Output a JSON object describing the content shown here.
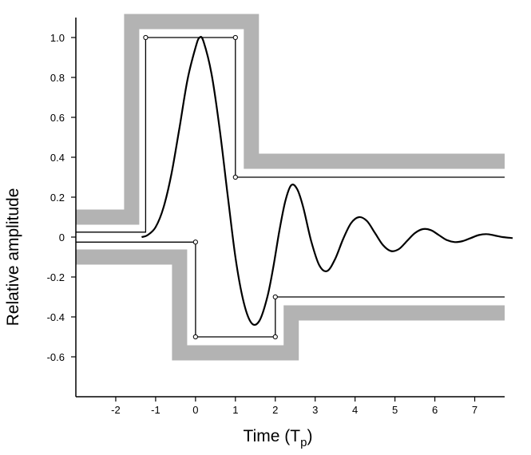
{
  "chart_data": {
    "type": "line",
    "xlabel": "Time (T",
    "xlabel_sub": "p",
    "xlabel_close": ")",
    "ylabel": "Relative amplitude",
    "xlim": [
      -3,
      7.75
    ],
    "ylim": [
      -0.8,
      1.1
    ],
    "x_ticks": [
      -2,
      -1,
      0,
      1,
      2,
      3,
      4,
      5,
      6,
      7
    ],
    "x_tick_labels": [
      "-2",
      "-1",
      "0",
      "1",
      "2",
      "3",
      "4",
      "5",
      "6",
      "7"
    ],
    "y_ticks": [
      1.0,
      0.8,
      0.6,
      0.4,
      0.2,
      0,
      -0.2,
      -0.4,
      -0.6
    ],
    "y_tick_labels": [
      "1.0",
      "0.8",
      "0.6",
      "0.4",
      "0.2",
      "0",
      "-0.2",
      "-0.4",
      "-0.6"
    ],
    "colors": {
      "band": "#b3b3b3",
      "line": "#000000"
    },
    "upper_envelope": {
      "x": [
        -3,
        -1.25,
        -1.25,
        1.0,
        1.0,
        7.75
      ],
      "y": [
        0.025,
        0.025,
        1.0,
        1.0,
        0.3,
        0.3
      ],
      "markers_x": [
        -1.25,
        1.0,
        1.0
      ],
      "markers_y": [
        1.0,
        1.0,
        0.3
      ]
    },
    "lower_envelope": {
      "x": [
        -3,
        0.0,
        0.0,
        2.0,
        2.0,
        7.75
      ],
      "y": [
        -0.025,
        -0.025,
        -0.5,
        -0.5,
        -0.3,
        -0.3
      ],
      "markers_x": [
        0.0,
        0.0,
        2.0,
        2.0
      ],
      "markers_y": [
        -0.025,
        -0.5,
        -0.5,
        -0.3
      ]
    },
    "upper_band": {
      "x": [
        -3,
        -1.6,
        -1.6,
        1.4,
        1.4,
        7.75
      ],
      "y": [
        0.1,
        0.1,
        1.08,
        1.08,
        0.38,
        0.38
      ]
    },
    "lower_band": {
      "x": [
        -3,
        -0.4,
        -0.4,
        2.4,
        2.4,
        7.75
      ],
      "y": [
        -0.1,
        -0.1,
        -0.58,
        -0.58,
        -0.38,
        -0.38
      ]
    },
    "waveform": {
      "x": [
        -1.35,
        -1.2,
        -1.0,
        -0.8,
        -0.6,
        -0.4,
        -0.2,
        0.0,
        0.1,
        0.2,
        0.4,
        0.6,
        0.8,
        1.0,
        1.2,
        1.4,
        1.6,
        1.8,
        1.95,
        2.1,
        2.25,
        2.4,
        2.55,
        2.7,
        2.9,
        3.1,
        3.3,
        3.5,
        3.7,
        3.9,
        4.1,
        4.3,
        4.5,
        4.7,
        4.9,
        5.1,
        5.3,
        5.5,
        5.7,
        5.9,
        6.1,
        6.3,
        6.5,
        6.7,
        6.9,
        7.1,
        7.3,
        7.5,
        7.7,
        7.95
      ],
      "y": [
        0.0,
        0.01,
        0.05,
        0.15,
        0.32,
        0.55,
        0.79,
        0.95,
        1.0,
        0.98,
        0.82,
        0.55,
        0.22,
        -0.1,
        -0.32,
        -0.43,
        -0.42,
        -0.3,
        -0.15,
        0.03,
        0.18,
        0.26,
        0.24,
        0.15,
        -0.02,
        -0.14,
        -0.17,
        -0.11,
        -0.01,
        0.07,
        0.1,
        0.08,
        0.02,
        -0.04,
        -0.07,
        -0.06,
        -0.02,
        0.02,
        0.04,
        0.035,
        0.01,
        -0.015,
        -0.025,
        -0.02,
        -0.005,
        0.01,
        0.015,
        0.008,
        0.0,
        -0.005
      ]
    }
  }
}
